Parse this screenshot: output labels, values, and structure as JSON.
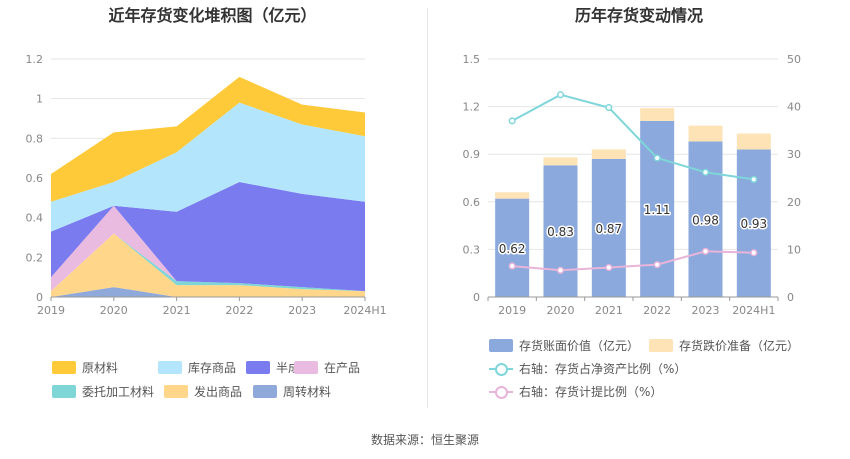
{
  "left_chart_title": "近年存货变化堆积图（亿元）",
  "right_chart_title": "历年存货变动情况",
  "source": "数据来源：恒生聚源",
  "colors": {
    "原材料": "#FFCA3A",
    "库存商品": "#B3E5FC",
    "半成品": "#7B7BF0",
    "在产品": "#EABBE0",
    "委托加工材料": "#7FD6D6",
    "发出商品": "#FFD68A",
    "周转材料": "#8FA9DB",
    "bar_value": "#8BA9DC",
    "bar_reserve": "#FDE3B5",
    "ratio_line": "#7FD6DA",
    "provision_line": "#E8B4DA"
  },
  "chart_data": [
    {
      "type": "area",
      "stacked": true,
      "title": "近年存货变化堆积图（亿元）",
      "categories": [
        "2019",
        "2020",
        "2021",
        "2022",
        "2023",
        "2024H1"
      ],
      "ylim": [
        0,
        1.2
      ],
      "yticks": [
        "0",
        "0.2",
        "0.4",
        "0.6",
        "0.8",
        "1",
        "1.2"
      ],
      "series": [
        {
          "name": "周转材料",
          "values": [
            0.0,
            0.05,
            0.0,
            0.0,
            0.0,
            0.0
          ]
        },
        {
          "name": "发出商品",
          "values": [
            0.03,
            0.27,
            0.06,
            0.06,
            0.04,
            0.03
          ]
        },
        {
          "name": "委托加工材料",
          "values": [
            0.0,
            0.0,
            0.02,
            0.01,
            0.01,
            0.0
          ]
        },
        {
          "name": "在产品",
          "values": [
            0.07,
            0.14,
            0.0,
            0.0,
            0.0,
            0.0
          ]
        },
        {
          "name": "半成品",
          "values": [
            0.23,
            0.0,
            0.35,
            0.51,
            0.47,
            0.45
          ]
        },
        {
          "name": "库存商品",
          "values": [
            0.15,
            0.12,
            0.3,
            0.4,
            0.35,
            0.33
          ]
        },
        {
          "name": "原材料",
          "values": [
            0.14,
            0.25,
            0.13,
            0.13,
            0.1,
            0.12
          ]
        }
      ],
      "legend": [
        "原材料",
        "库存商品",
        "半成品",
        "在产品",
        "委托加工材料",
        "发出商品",
        "周转材料"
      ]
    },
    {
      "type": "bar",
      "stacked": true,
      "title": "历年存货变动情况",
      "categories": [
        "2019",
        "2020",
        "2021",
        "2022",
        "2023",
        "2024H1"
      ],
      "ylim": [
        0,
        1.5
      ],
      "yticks": [
        "0",
        "0.3",
        "0.6",
        "0.9",
        "1.2",
        "1.5"
      ],
      "y2lim": [
        0,
        50
      ],
      "y2ticks": [
        "0",
        "10",
        "20",
        "30",
        "40",
        "50"
      ],
      "series": [
        {
          "name": "存货账面价值（亿元）",
          "axis": "left",
          "kind": "bar",
          "values": [
            0.62,
            0.83,
            0.87,
            1.11,
            0.98,
            0.93
          ],
          "labels": [
            "0.62",
            "0.83",
            "0.87",
            "1.11",
            "0.98",
            "0.93"
          ]
        },
        {
          "name": "存货跌价准备（亿元）",
          "axis": "left",
          "kind": "bar",
          "values": [
            0.04,
            0.05,
            0.06,
            0.08,
            0.1,
            0.1
          ]
        },
        {
          "name": "右轴：存货占净资产比例（%）",
          "axis": "right",
          "kind": "line",
          "values": [
            37.0,
            42.5,
            39.8,
            29.2,
            26.2,
            24.7
          ]
        },
        {
          "name": "右轴：存货计提比例（%）",
          "axis": "right",
          "kind": "line",
          "values": [
            6.5,
            5.6,
            6.2,
            6.8,
            9.6,
            9.3
          ]
        }
      ]
    }
  ]
}
